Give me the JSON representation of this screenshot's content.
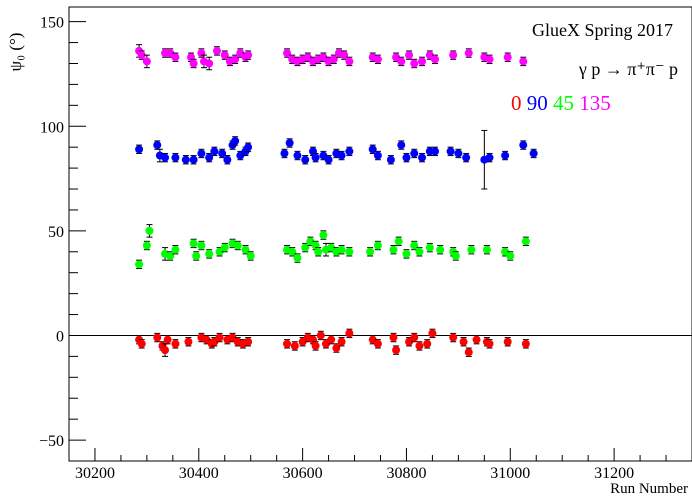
{
  "chart_data": {
    "type": "scatter",
    "title": "GlueX Spring 2017",
    "reaction": "γ p → π⁺π⁻ p",
    "xlabel": "Run Number",
    "ylabel": "ψ₀ (°)",
    "xlim": [
      30150,
      31350
    ],
    "ylim": [
      -60,
      157
    ],
    "xticks": [
      30200,
      30400,
      30600,
      30800,
      31000,
      31200
    ],
    "yticks": [
      -50,
      0,
      50,
      100,
      150
    ],
    "reference_line_y": 0,
    "legend_placement": "top-right",
    "series": [
      {
        "name": "0",
        "color": "#ff0000",
        "points": [
          [
            30285,
            -2,
            2
          ],
          [
            30290,
            -4,
            2
          ],
          [
            30320,
            -1,
            2
          ],
          [
            30330,
            -5,
            2
          ],
          [
            30335,
            -7,
            3
          ],
          [
            30340,
            -2,
            2
          ],
          [
            30355,
            -4,
            2
          ],
          [
            30380,
            -3,
            2
          ],
          [
            30405,
            -1,
            2
          ],
          [
            30415,
            -2,
            2
          ],
          [
            30425,
            -4,
            2
          ],
          [
            30430,
            -3,
            2
          ],
          [
            30440,
            -1,
            2
          ],
          [
            30455,
            -2,
            2
          ],
          [
            30465,
            -1,
            2
          ],
          [
            30475,
            -3,
            2
          ],
          [
            30485,
            -4,
            2
          ],
          [
            30495,
            -3,
            2
          ],
          [
            30570,
            -4,
            2
          ],
          [
            30585,
            -5,
            2
          ],
          [
            30600,
            -3,
            2
          ],
          [
            30610,
            -1,
            2
          ],
          [
            30620,
            -2,
            2
          ],
          [
            30625,
            -5,
            2
          ],
          [
            30635,
            0,
            2
          ],
          [
            30645,
            -4,
            2
          ],
          [
            30655,
            -2,
            2
          ],
          [
            30665,
            -6,
            2
          ],
          [
            30675,
            -3,
            2
          ],
          [
            30690,
            1,
            2
          ],
          [
            30735,
            -2,
            2
          ],
          [
            30745,
            -4,
            2
          ],
          [
            30775,
            -1,
            2
          ],
          [
            30780,
            -7,
            2
          ],
          [
            30805,
            -3,
            2
          ],
          [
            30815,
            -1,
            2
          ],
          [
            30825,
            -5,
            2
          ],
          [
            30840,
            -4,
            2
          ],
          [
            30850,
            1,
            2
          ],
          [
            30890,
            -1,
            2
          ],
          [
            30910,
            -3,
            2
          ],
          [
            30920,
            -8,
            2
          ],
          [
            30935,
            -2,
            2
          ],
          [
            30955,
            -3,
            2
          ],
          [
            30960,
            -4,
            2
          ],
          [
            30995,
            -3,
            2
          ],
          [
            31030,
            -4,
            2
          ]
        ]
      },
      {
        "name": "90",
        "color": "#0000ff",
        "points": [
          [
            30285,
            89,
            2
          ],
          [
            30320,
            91,
            2
          ],
          [
            30325,
            86,
            3
          ],
          [
            30335,
            85,
            2
          ],
          [
            30355,
            85,
            2
          ],
          [
            30375,
            84,
            2
          ],
          [
            30390,
            84,
            2
          ],
          [
            30405,
            87,
            2
          ],
          [
            30420,
            85,
            2
          ],
          [
            30430,
            88,
            2
          ],
          [
            30445,
            87,
            2
          ],
          [
            30455,
            84,
            2
          ],
          [
            30465,
            91,
            2
          ],
          [
            30470,
            93,
            2
          ],
          [
            30480,
            86,
            2
          ],
          [
            30490,
            88,
            2
          ],
          [
            30495,
            90,
            2
          ],
          [
            30565,
            87,
            2
          ],
          [
            30575,
            92,
            2
          ],
          [
            30590,
            86,
            2
          ],
          [
            30605,
            84,
            2
          ],
          [
            30620,
            88,
            2
          ],
          [
            30625,
            85,
            2
          ],
          [
            30640,
            86,
            2
          ],
          [
            30650,
            84,
            2
          ],
          [
            30665,
            87,
            2
          ],
          [
            30675,
            86,
            2
          ],
          [
            30690,
            88,
            2
          ],
          [
            30735,
            89,
            2
          ],
          [
            30745,
            86,
            2
          ],
          [
            30770,
            84,
            2
          ],
          [
            30790,
            91,
            2
          ],
          [
            30800,
            85,
            2
          ],
          [
            30815,
            87,
            2
          ],
          [
            30830,
            85,
            2
          ],
          [
            30845,
            88,
            2
          ],
          [
            30855,
            88,
            2
          ],
          [
            30885,
            88,
            2
          ],
          [
            30900,
            87,
            2
          ],
          [
            30915,
            85,
            2
          ],
          [
            30950,
            84,
            14
          ],
          [
            30960,
            85,
            2
          ],
          [
            30990,
            86,
            2
          ],
          [
            31025,
            91,
            2
          ],
          [
            31045,
            87,
            2
          ]
        ]
      },
      {
        "name": "45",
        "color": "#00ff00",
        "points": [
          [
            30285,
            34,
            2
          ],
          [
            30300,
            43,
            2
          ],
          [
            30305,
            50,
            3
          ],
          [
            30335,
            39,
            3
          ],
          [
            30345,
            38,
            2
          ],
          [
            30355,
            41,
            2
          ],
          [
            30390,
            44,
            2
          ],
          [
            30395,
            38,
            2
          ],
          [
            30405,
            43,
            2
          ],
          [
            30420,
            39,
            2
          ],
          [
            30440,
            40,
            2
          ],
          [
            30450,
            42,
            2
          ],
          [
            30465,
            44,
            2
          ],
          [
            30475,
            43,
            2
          ],
          [
            30490,
            41,
            2
          ],
          [
            30500,
            38,
            2
          ],
          [
            30570,
            41,
            2
          ],
          [
            30580,
            40,
            2
          ],
          [
            30590,
            37,
            2
          ],
          [
            30605,
            42,
            2
          ],
          [
            30615,
            45,
            2
          ],
          [
            30625,
            43,
            2
          ],
          [
            30630,
            40,
            2
          ],
          [
            30640,
            48,
            2
          ],
          [
            30645,
            41,
            3
          ],
          [
            30655,
            42,
            2
          ],
          [
            30665,
            40,
            2
          ],
          [
            30675,
            41,
            2
          ],
          [
            30690,
            40,
            2
          ],
          [
            30730,
            40,
            2
          ],
          [
            30745,
            43,
            2
          ],
          [
            30775,
            41,
            2
          ],
          [
            30785,
            45,
            2
          ],
          [
            30800,
            39,
            2
          ],
          [
            30815,
            43,
            2
          ],
          [
            30825,
            40,
            2
          ],
          [
            30845,
            42,
            2
          ],
          [
            30865,
            41,
            2
          ],
          [
            30890,
            40,
            2
          ],
          [
            30895,
            38,
            2
          ],
          [
            30925,
            41,
            2
          ],
          [
            30955,
            41,
            2
          ],
          [
            30990,
            40,
            2
          ],
          [
            31000,
            38,
            2
          ],
          [
            31030,
            45,
            2
          ]
        ]
      },
      {
        "name": "135",
        "color": "#ff00ff",
        "points": [
          [
            30285,
            136,
            3
          ],
          [
            30290,
            134,
            2
          ],
          [
            30300,
            131,
            3
          ],
          [
            30335,
            135,
            2
          ],
          [
            30345,
            135,
            2
          ],
          [
            30355,
            133,
            2
          ],
          [
            30385,
            133,
            2
          ],
          [
            30390,
            130,
            2
          ],
          [
            30405,
            135,
            2
          ],
          [
            30410,
            131,
            3
          ],
          [
            30420,
            130,
            3
          ],
          [
            30435,
            136,
            2
          ],
          [
            30450,
            134,
            2
          ],
          [
            30460,
            131,
            2
          ],
          [
            30470,
            132,
            2
          ],
          [
            30480,
            135,
            2
          ],
          [
            30490,
            133,
            2
          ],
          [
            30495,
            134,
            2
          ],
          [
            30570,
            135,
            2
          ],
          [
            30580,
            132,
            2
          ],
          [
            30590,
            131,
            2
          ],
          [
            30600,
            132,
            2
          ],
          [
            30610,
            133,
            2
          ],
          [
            30620,
            131,
            2
          ],
          [
            30630,
            132,
            2
          ],
          [
            30640,
            133,
            2
          ],
          [
            30650,
            131,
            2
          ],
          [
            30660,
            132,
            2
          ],
          [
            30670,
            135,
            2
          ],
          [
            30680,
            134,
            2
          ],
          [
            30690,
            131,
            2
          ],
          [
            30735,
            133,
            2
          ],
          [
            30745,
            132,
            2
          ],
          [
            30780,
            133,
            2
          ],
          [
            30790,
            131,
            2
          ],
          [
            30805,
            134,
            2
          ],
          [
            30815,
            130,
            2
          ],
          [
            30830,
            131,
            2
          ],
          [
            30845,
            134,
            2
          ],
          [
            30855,
            132,
            2
          ],
          [
            30890,
            134,
            2
          ],
          [
            30920,
            135,
            2
          ],
          [
            30950,
            133,
            2
          ],
          [
            30960,
            132,
            2
          ],
          [
            30995,
            133,
            2
          ],
          [
            31025,
            131,
            2
          ]
        ]
      }
    ]
  }
}
